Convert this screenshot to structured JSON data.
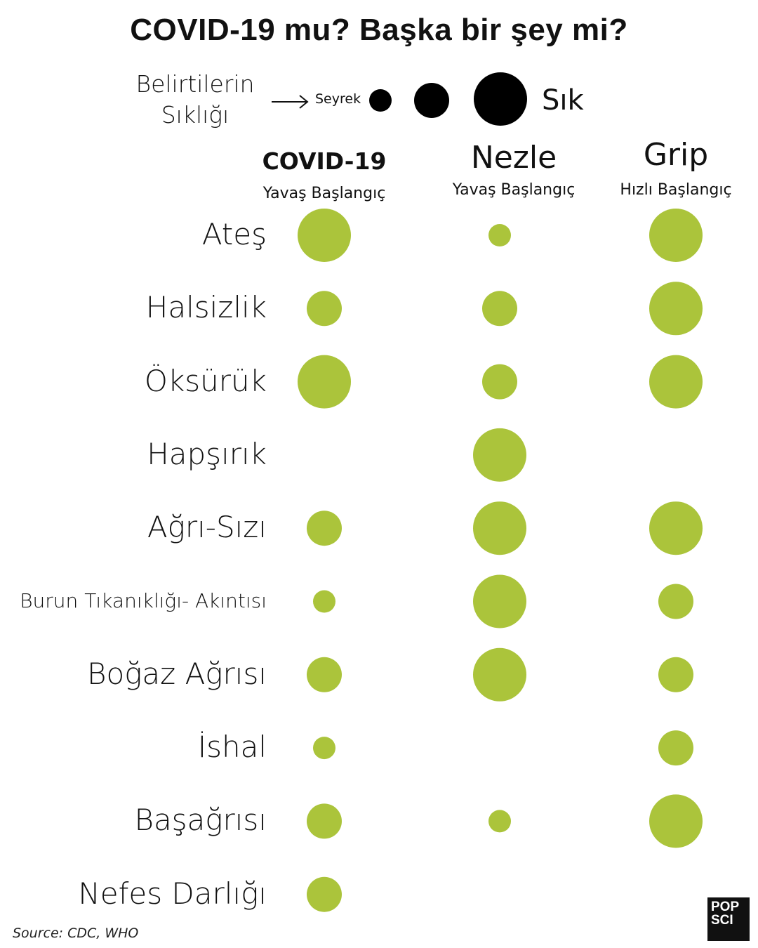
{
  "title": "COVID-19 mu? Başka bir şey mi?",
  "legend": {
    "label_line1": "Belirtilerin",
    "label_line2": "Sıklığı",
    "small_label": "Seyrek",
    "large_label": "Sık"
  },
  "columns": [
    {
      "name": "COVID-19",
      "subtitle": "Yavaş Başlangıç"
    },
    {
      "name": "Nezle",
      "subtitle": "Yavaş Başlangıç"
    },
    {
      "name": "Grip",
      "subtitle": "Hızlı Başlangıç"
    }
  ],
  "colors": {
    "dot": "#abc43b",
    "legend_dot": "#000000"
  },
  "chart_data": {
    "type": "scatter",
    "title": "COVID-19 mu? Başka bir şey mi?",
    "categories": [
      "Ateş",
      "Halsizlik",
      "Öksürük",
      "Hapşırık",
      "Ağrı-Sızı",
      "Burun Tıkanıklığı- Akıntısı",
      "Boğaz Ağrısı",
      "İshal",
      "Başağrısı",
      "Nefes Darlığı"
    ],
    "frequency_scale": {
      "levels": [
        1,
        2,
        3
      ],
      "min_label": "Seyrek",
      "max_label": "Sık"
    },
    "series": [
      {
        "name": "COVID-19",
        "values": [
          3,
          2,
          3,
          null,
          2,
          1,
          2,
          1,
          2,
          2
        ]
      },
      {
        "name": "Nezle",
        "values": [
          1,
          2,
          2,
          3,
          3,
          3,
          3,
          null,
          1,
          null
        ]
      },
      {
        "name": "Grip",
        "values": [
          3,
          3,
          3,
          null,
          3,
          2,
          2,
          2,
          3,
          null
        ]
      }
    ]
  },
  "source": "Source: CDC, WHO",
  "logo": {
    "line1": "POP",
    "line2": "SCI"
  }
}
